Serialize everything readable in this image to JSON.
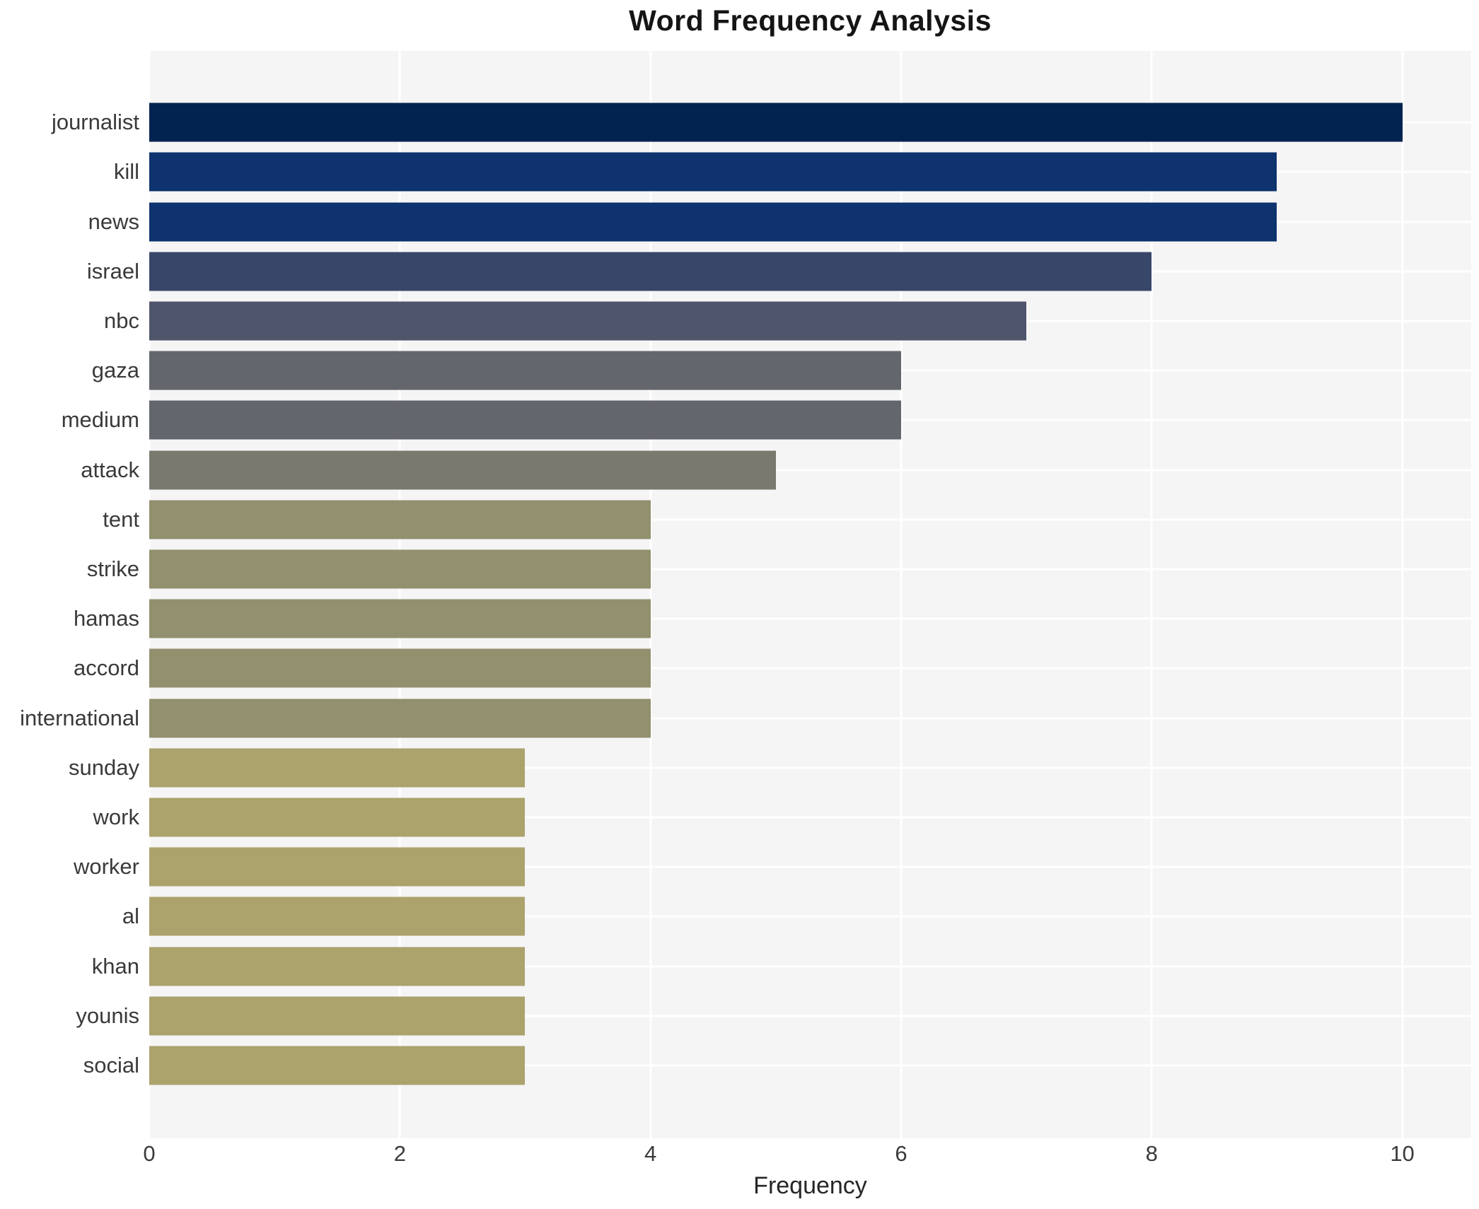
{
  "title": "Word Frequency Analysis",
  "chart_data": {
    "type": "bar",
    "orientation": "horizontal",
    "title": "Word Frequency Analysis",
    "xlabel": "Frequency",
    "ylabel": "",
    "categories": [
      "journalist",
      "kill",
      "news",
      "israel",
      "nbc",
      "gaza",
      "medium",
      "attack",
      "tent",
      "strike",
      "hamas",
      "accord",
      "international",
      "sunday",
      "work",
      "worker",
      "al",
      "khan",
      "younis",
      "social"
    ],
    "values": [
      10,
      9,
      9,
      8,
      7,
      6,
      6,
      5,
      4,
      4,
      4,
      4,
      4,
      3,
      3,
      3,
      3,
      3,
      3,
      3
    ],
    "bar_colors": [
      "#02224f",
      "#0e336e",
      "#0e336e",
      "#384769",
      "#4f556b",
      "#64666d",
      "#64666d",
      "#7a7970",
      "#93906f",
      "#93906f",
      "#93906f",
      "#93906f",
      "#93906f",
      "#aca26c",
      "#aca26c",
      "#aca26c",
      "#aca26c",
      "#aca26c",
      "#aca26c",
      "#aca26c"
    ],
    "xticks": [
      0,
      2,
      4,
      6,
      8,
      10
    ],
    "xlim": [
      0,
      10.55
    ],
    "grid": true,
    "legend": false,
    "plot_background": "#f5f5f6",
    "gridline_color": "#ffffff"
  }
}
